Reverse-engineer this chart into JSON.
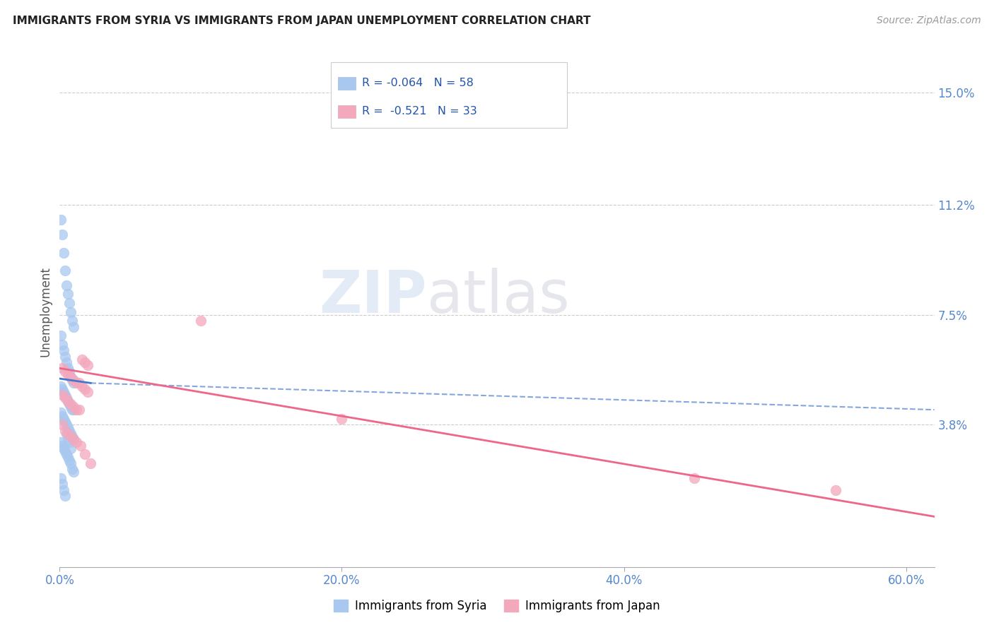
{
  "title": "IMMIGRANTS FROM SYRIA VS IMMIGRANTS FROM JAPAN UNEMPLOYMENT CORRELATION CHART",
  "source": "Source: ZipAtlas.com",
  "xlabel_ticks": [
    "0.0%",
    "20.0%",
    "40.0%",
    "60.0%"
  ],
  "xlabel_tick_vals": [
    0.0,
    0.2,
    0.4,
    0.6
  ],
  "ylabel": "Unemployment",
  "ylabel_ticks": [
    "3.8%",
    "7.5%",
    "11.2%",
    "15.0%"
  ],
  "ylabel_tick_vals": [
    0.038,
    0.075,
    0.112,
    0.15
  ],
  "xlim": [
    0.0,
    0.62
  ],
  "ylim": [
    -0.01,
    0.162
  ],
  "legend_box": {
    "syria_R": "-0.064",
    "syria_N": "58",
    "japan_R": "-0.521",
    "japan_N": "33"
  },
  "syria_color": "#a8c8f0",
  "japan_color": "#f4a8bc",
  "syria_line_color": "#4477cc",
  "japan_line_color": "#ee6688",
  "watermark_zip_color": "#c8dff0",
  "watermark_atlas_color": "#c8c8d0",
  "syria_x": [
    0.001,
    0.002,
    0.003,
    0.004,
    0.005,
    0.006,
    0.007,
    0.008,
    0.009,
    0.01,
    0.001,
    0.002,
    0.003,
    0.004,
    0.005,
    0.006,
    0.007,
    0.008,
    0.009,
    0.01,
    0.001,
    0.002,
    0.003,
    0.004,
    0.005,
    0.006,
    0.007,
    0.008,
    0.009,
    0.01,
    0.001,
    0.002,
    0.003,
    0.004,
    0.005,
    0.006,
    0.007,
    0.008,
    0.009,
    0.01,
    0.001,
    0.002,
    0.003,
    0.004,
    0.005,
    0.006,
    0.007,
    0.008,
    0.009,
    0.01,
    0.001,
    0.002,
    0.003,
    0.004,
    0.005,
    0.006,
    0.007,
    0.008
  ],
  "syria_y": [
    0.107,
    0.102,
    0.096,
    0.09,
    0.085,
    0.082,
    0.079,
    0.076,
    0.073,
    0.071,
    0.068,
    0.065,
    0.063,
    0.061,
    0.059,
    0.057,
    0.056,
    0.054,
    0.053,
    0.052,
    0.051,
    0.05,
    0.049,
    0.048,
    0.047,
    0.046,
    0.045,
    0.044,
    0.043,
    0.043,
    0.042,
    0.041,
    0.04,
    0.039,
    0.038,
    0.037,
    0.036,
    0.035,
    0.034,
    0.033,
    0.032,
    0.031,
    0.03,
    0.029,
    0.028,
    0.027,
    0.026,
    0.025,
    0.023,
    0.022,
    0.02,
    0.018,
    0.016,
    0.014,
    0.035,
    0.033,
    0.032,
    0.03
  ],
  "japan_x": [
    0.002,
    0.004,
    0.006,
    0.008,
    0.01,
    0.012,
    0.014,
    0.016,
    0.018,
    0.02,
    0.002,
    0.004,
    0.006,
    0.008,
    0.01,
    0.012,
    0.014,
    0.016,
    0.018,
    0.02,
    0.1,
    0.2,
    0.45,
    0.55,
    0.002,
    0.004,
    0.006,
    0.008,
    0.01,
    0.012,
    0.015,
    0.018,
    0.022
  ],
  "japan_y": [
    0.057,
    0.056,
    0.055,
    0.054,
    0.053,
    0.052,
    0.052,
    0.051,
    0.05,
    0.049,
    0.048,
    0.047,
    0.046,
    0.045,
    0.044,
    0.043,
    0.043,
    0.06,
    0.059,
    0.058,
    0.073,
    0.04,
    0.02,
    0.016,
    0.038,
    0.036,
    0.035,
    0.034,
    0.033,
    0.032,
    0.031,
    0.028,
    0.025
  ]
}
